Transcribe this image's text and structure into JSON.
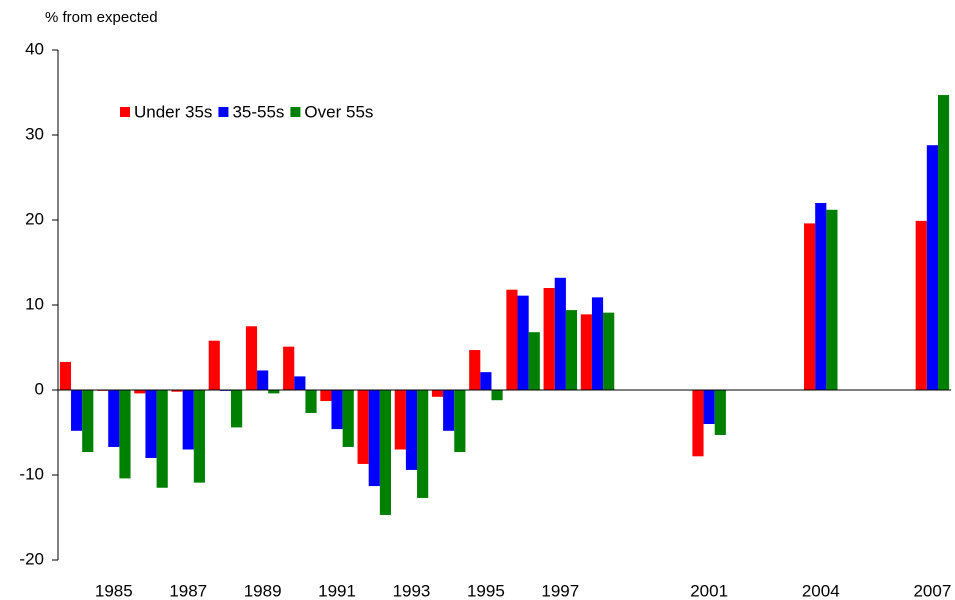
{
  "chart_data": {
    "type": "bar",
    "y_label": "% from expected",
    "categories": [
      null,
      "1985",
      null,
      "1987",
      null,
      "1989",
      null,
      "1991",
      null,
      "1993",
      null,
      "1995",
      null,
      "1997",
      null,
      null,
      null,
      "2001",
      null,
      null,
      "2004",
      null,
      null,
      "2007"
    ],
    "series": [
      {
        "name": "Under 35s",
        "color": "#ff0000",
        "values": [
          3.3,
          -0.1,
          -0.4,
          -0.2,
          5.8,
          7.5,
          5.1,
          -1.3,
          -8.7,
          -7.0,
          -0.8,
          4.7,
          11.8,
          12.0,
          8.9,
          null,
          null,
          -7.8,
          null,
          null,
          19.6,
          null,
          null,
          19.9
        ]
      },
      {
        "name": "35-55s",
        "color": "#0000ff",
        "values": [
          -4.8,
          -6.7,
          -8.0,
          -7.0,
          -0.1,
          2.3,
          1.6,
          -4.6,
          -11.3,
          -9.4,
          -4.8,
          2.1,
          11.1,
          13.2,
          10.9,
          null,
          null,
          -4.0,
          null,
          null,
          22.0,
          null,
          null,
          28.8
        ]
      },
      {
        "name": "Over 55s",
        "color": "#008000",
        "values": [
          -7.3,
          -10.4,
          -11.5,
          -10.9,
          -4.4,
          -0.4,
          -2.7,
          -6.7,
          -14.7,
          -12.7,
          -7.3,
          -1.2,
          6.8,
          9.4,
          9.1,
          null,
          null,
          -5.3,
          null,
          null,
          21.2,
          null,
          null,
          34.7
        ]
      }
    ],
    "ylim": [
      -20,
      40
    ],
    "yticks": [
      -20,
      -10,
      0,
      10,
      20,
      30,
      40
    ]
  }
}
